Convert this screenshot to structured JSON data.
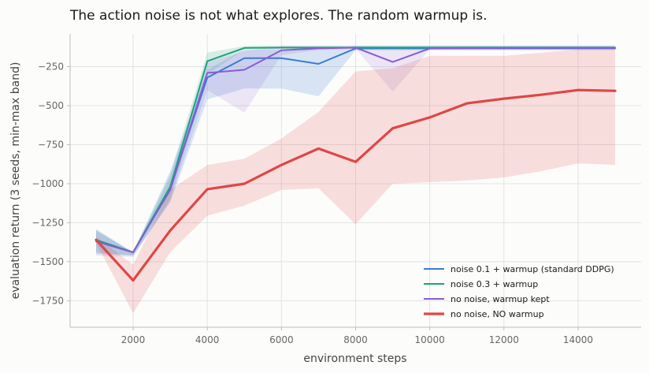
{
  "chart_data": {
    "type": "line",
    "title": "The action noise is not what explores. The random warmup is.",
    "xlabel": "environment steps",
    "ylabel": "evaluation return (3 seeds, min-max band)",
    "xlim": [
      300,
      15700
    ],
    "ylim": [
      -1920,
      -40
    ],
    "xticks": [
      2000,
      4000,
      6000,
      8000,
      10000,
      12000,
      14000
    ],
    "yticks": [
      -250,
      -500,
      -750,
      -1000,
      -1250,
      -1500,
      -1750
    ],
    "grid": true,
    "legend_position": "lower-right",
    "series": [
      {
        "name": "noise 0.1 + warmup (standard DDPG)",
        "color": "#3a7bd5",
        "line_width": 2,
        "x": [
          1000,
          2000,
          3000,
          4000,
          5000,
          6000,
          7000,
          8000,
          9000,
          10000,
          11000,
          12000,
          13000,
          14000,
          15000
        ],
        "y": [
          -1360,
          -1440,
          -1030,
          -320,
          -195,
          -195,
          -232,
          -133,
          -133,
          -133,
          -133,
          -133,
          -133,
          -133,
          -133
        ],
        "band_low": [
          -1450,
          -1460,
          -1120,
          -460,
          -390,
          -390,
          -440,
          -145,
          -145,
          -145,
          -145,
          -145,
          -145,
          -145,
          -145
        ],
        "band_high": [
          -1290,
          -1440,
          -920,
          -270,
          -140,
          -140,
          -140,
          -118,
          -118,
          -118,
          -118,
          -118,
          -118,
          -118,
          -118
        ]
      },
      {
        "name": "noise 0.3 + warmup",
        "color": "#1aa37a",
        "line_width": 2,
        "x": [
          1000,
          2000,
          3000,
          4000,
          5000,
          6000,
          7000,
          8000,
          9000,
          10000,
          11000,
          12000,
          13000,
          14000,
          15000
        ],
        "y": [
          -1360,
          -1440,
          -1020,
          -215,
          -130,
          -128,
          -128,
          -128,
          -128,
          -128,
          -128,
          -128,
          -128,
          -128,
          -128
        ],
        "band_low": [
          -1440,
          -1460,
          -1100,
          -300,
          -140,
          -135,
          -135,
          -135,
          -135,
          -135,
          -135,
          -135,
          -135,
          -135,
          -135
        ],
        "band_high": [
          -1300,
          -1440,
          -940,
          -160,
          -118,
          -115,
          -115,
          -115,
          -115,
          -115,
          -115,
          -115,
          -115,
          -115,
          -115
        ]
      },
      {
        "name": "no noise, warmup kept",
        "color": "#8a5bd6",
        "line_width": 2,
        "x": [
          1000,
          2000,
          3000,
          4000,
          5000,
          6000,
          7000,
          8000,
          9000,
          10000,
          11000,
          12000,
          13000,
          14000,
          15000
        ],
        "y": [
          -1370,
          -1440,
          -1040,
          -290,
          -270,
          -145,
          -133,
          -128,
          -220,
          -133,
          -131,
          -130,
          -130,
          -129,
          -129
        ],
        "band_low": [
          -1460,
          -1470,
          -1110,
          -400,
          -545,
          -175,
          -145,
          -135,
          -410,
          -140,
          -138,
          -137,
          -137,
          -136,
          -136
        ],
        "band_high": [
          -1300,
          -1440,
          -960,
          -220,
          -150,
          -118,
          -118,
          -118,
          -120,
          -118,
          -118,
          -118,
          -118,
          -118,
          -118
        ]
      },
      {
        "name": "no noise, NO warmup",
        "color": "#e04646",
        "line_width": 3.2,
        "x": [
          1000,
          2000,
          3000,
          4000,
          5000,
          6000,
          7000,
          8000,
          9000,
          10000,
          11000,
          12000,
          13000,
          14000,
          15000
        ],
        "y": [
          -1360,
          -1620,
          -1300,
          -1035,
          -1000,
          -880,
          -775,
          -860,
          -645,
          -575,
          -485,
          -455,
          -430,
          -400,
          -405
        ],
        "band_low": [
          -1380,
          -1830,
          -1440,
          -1205,
          -1140,
          -1040,
          -1030,
          -1260,
          -1000,
          -990,
          -980,
          -960,
          -920,
          -870,
          -880
        ],
        "band_high": [
          -1340,
          -1520,
          -1040,
          -880,
          -840,
          -710,
          -540,
          -280,
          -260,
          -180,
          -180,
          -180,
          -160,
          -140,
          -140
        ]
      }
    ]
  }
}
